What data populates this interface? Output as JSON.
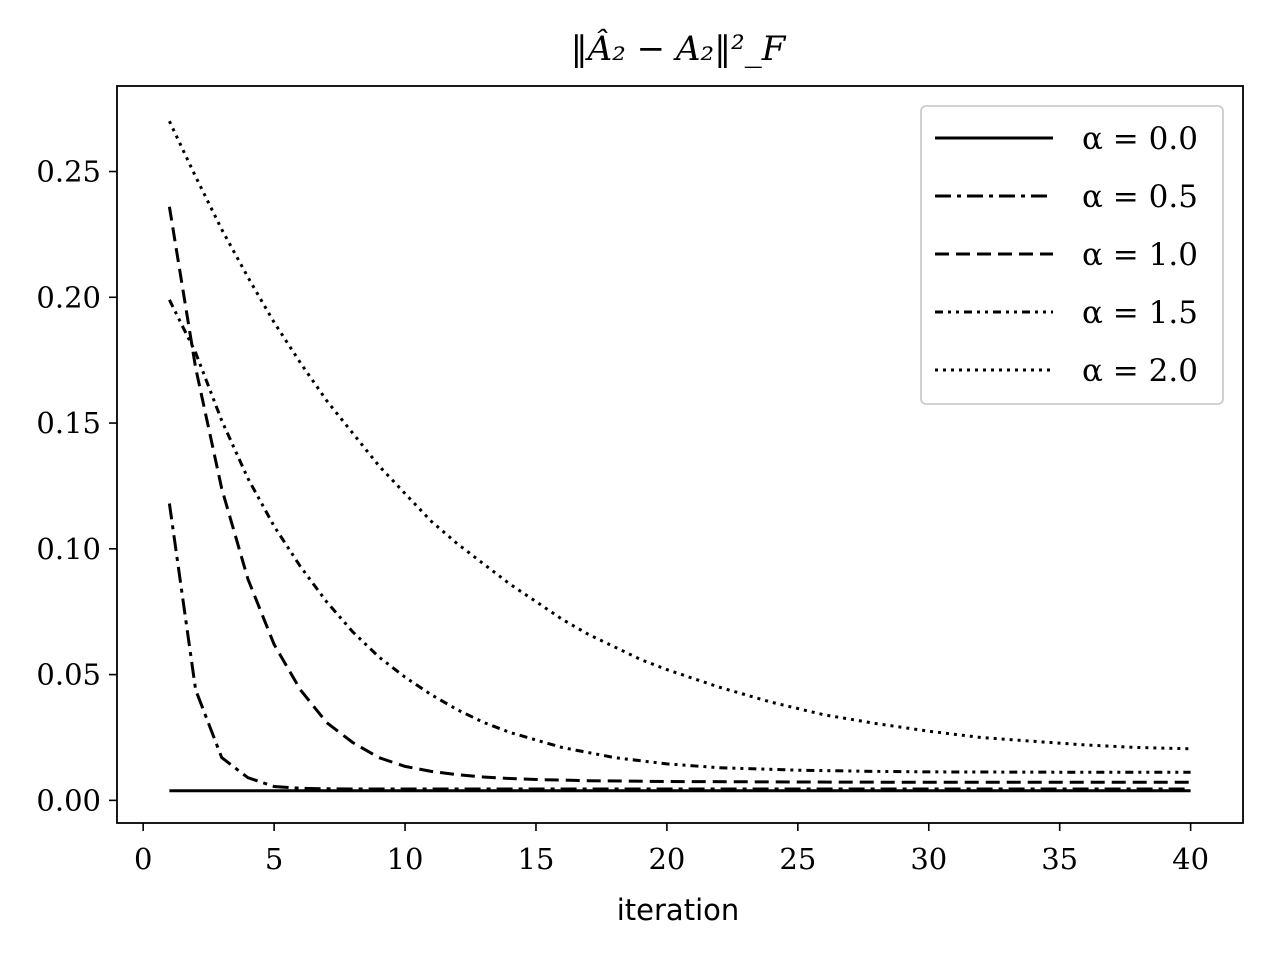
{
  "chart_data": {
    "type": "line",
    "title": "‖Â₂ − A₂‖²_F",
    "xlabel": "iteration",
    "ylabel": "",
    "xlim": [
      -1,
      42
    ],
    "ylim": [
      -0.009,
      0.284
    ],
    "xticks": [
      0,
      5,
      10,
      15,
      20,
      25,
      30,
      35,
      40
    ],
    "xtick_labels": [
      "0",
      "5",
      "10",
      "15",
      "20",
      "25",
      "30",
      "35",
      "40"
    ],
    "yticks": [
      0.0,
      0.05,
      0.1,
      0.15,
      0.2,
      0.25
    ],
    "ytick_labels": [
      "0.00",
      "0.05",
      "0.10",
      "0.15",
      "0.20",
      "0.25"
    ],
    "grid": false,
    "legend": "top-right",
    "line_color": "#000000",
    "series": [
      {
        "name": "α = 0.0",
        "style": "solid",
        "x": [
          1,
          5,
          10,
          15,
          20,
          25,
          30,
          35,
          40
        ],
        "y": [
          0.0038,
          0.0038,
          0.0038,
          0.0038,
          0.0038,
          0.0038,
          0.0038,
          0.0038,
          0.0038
        ]
      },
      {
        "name": "α = 0.5",
        "style": "dashdot",
        "x": [
          1,
          2,
          3,
          4,
          5,
          6,
          7,
          8,
          10,
          15,
          20,
          25,
          30,
          35,
          40
        ],
        "y": [
          0.118,
          0.044,
          0.017,
          0.009,
          0.0055,
          0.0048,
          0.0046,
          0.0045,
          0.0045,
          0.0045,
          0.0045,
          0.0045,
          0.0045,
          0.0045,
          0.0045
        ]
      },
      {
        "name": "α = 1.0",
        "style": "dashed",
        "x": [
          1,
          2,
          3,
          4,
          5,
          6,
          7,
          8,
          9,
          10,
          11,
          12,
          13,
          14,
          15,
          17,
          20,
          25,
          30,
          35,
          40
        ],
        "y": [
          0.236,
          0.172,
          0.124,
          0.088,
          0.062,
          0.044,
          0.031,
          0.023,
          0.017,
          0.0135,
          0.0115,
          0.0102,
          0.0093,
          0.0087,
          0.0083,
          0.0078,
          0.0075,
          0.0073,
          0.0072,
          0.0072,
          0.0072
        ]
      },
      {
        "name": "α = 1.5",
        "style": "densely-dashdotdotted",
        "x": [
          1,
          2,
          3,
          4,
          5,
          6,
          7,
          8,
          9,
          10,
          11,
          12,
          13,
          14,
          15,
          16,
          18,
          20,
          22,
          25,
          28,
          30,
          35,
          40
        ],
        "y": [
          0.199,
          0.178,
          0.151,
          0.128,
          0.109,
          0.093,
          0.079,
          0.067,
          0.057,
          0.049,
          0.042,
          0.036,
          0.031,
          0.027,
          0.024,
          0.021,
          0.017,
          0.0145,
          0.013,
          0.012,
          0.0115,
          0.0113,
          0.0112,
          0.0112
        ]
      },
      {
        "name": "α = 2.0",
        "style": "dotted",
        "x": [
          1,
          2,
          3,
          4,
          5,
          6,
          7,
          8,
          9,
          10,
          11,
          12,
          13,
          14,
          15,
          16,
          17,
          18,
          19,
          20,
          22,
          24,
          26,
          28,
          30,
          32,
          34,
          36,
          38,
          40
        ],
        "y": [
          0.27,
          0.248,
          0.227,
          0.208,
          0.19,
          0.174,
          0.159,
          0.146,
          0.133,
          0.122,
          0.111,
          0.102,
          0.094,
          0.086,
          0.079,
          0.072,
          0.066,
          0.061,
          0.056,
          0.052,
          0.045,
          0.039,
          0.034,
          0.0305,
          0.0275,
          0.025,
          0.0235,
          0.022,
          0.021,
          0.0205
        ]
      }
    ]
  }
}
